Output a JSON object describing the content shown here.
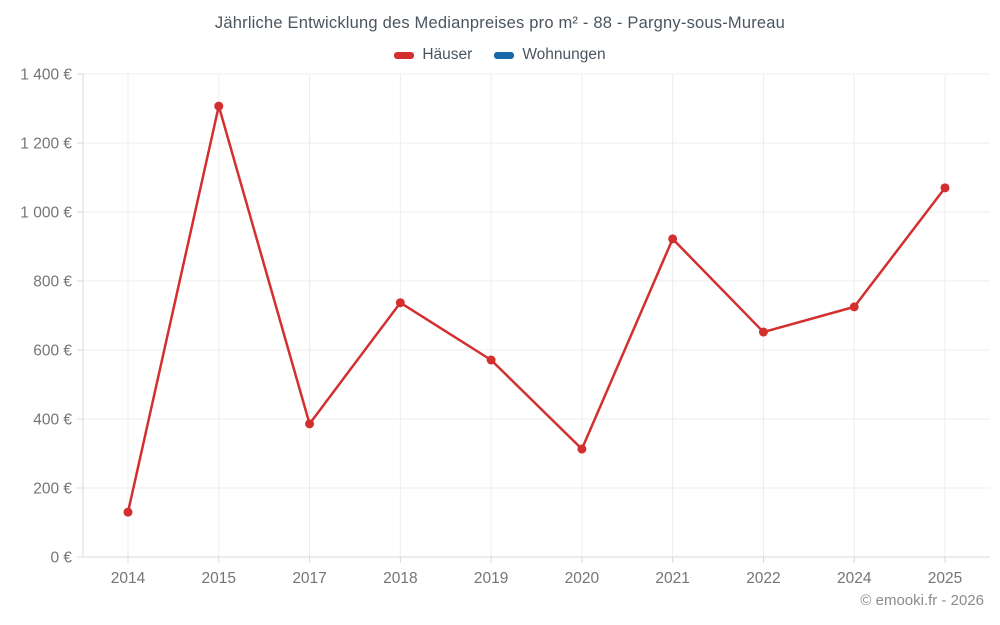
{
  "title": "Jährliche Entwicklung des Medianpreises pro m² - 88 - Pargny-sous-Mureau",
  "legend": {
    "items": [
      {
        "label": "Häuser",
        "color": "#d32f2f"
      },
      {
        "label": "Wohnungen",
        "color": "#1769aa"
      }
    ]
  },
  "footer": "© emooki.fr - 2026",
  "colors": {
    "grid": "#ececec",
    "axis": "#d9d9d9",
    "tick_label": "#757575",
    "title_text": "#4a5560",
    "background": "#ffffff"
  },
  "chart_data": {
    "type": "line",
    "title": "Jährliche Entwicklung des Medianpreises pro m² - 88 - Pargny-sous-Mureau",
    "categories": [
      "2014",
      "2015",
      "2017",
      "2018",
      "2019",
      "2020",
      "2021",
      "2022",
      "2024",
      "2025"
    ],
    "series": [
      {
        "name": "Häuser",
        "color": "#d32f2f",
        "values": [
          130,
          1307,
          386,
          737,
          571,
          313,
          922,
          652,
          725,
          1070
        ]
      },
      {
        "name": "Wohnungen",
        "color": "#1769aa",
        "values": []
      }
    ],
    "xlabel": "",
    "ylabel": "",
    "ylim": [
      0,
      1400
    ],
    "ytick_step": 200,
    "ytick_labels": [
      "0 €",
      "200 €",
      "400 €",
      "600 €",
      "800 €",
      "1 000 €",
      "1 200 €",
      "1 400 €"
    ],
    "grid": true,
    "legend_position": "top",
    "unit": "€"
  }
}
